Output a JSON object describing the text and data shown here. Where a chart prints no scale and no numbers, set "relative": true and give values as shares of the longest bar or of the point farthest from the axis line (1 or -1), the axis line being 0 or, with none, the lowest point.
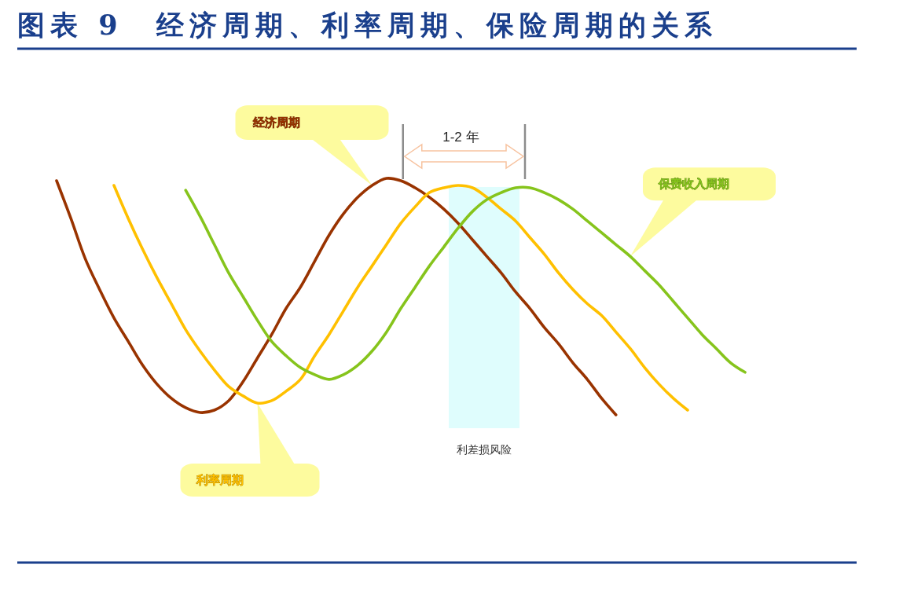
{
  "chart_data": {
    "type": "line",
    "title": "图表 9　经济周期、利率周期、保险周期的关系",
    "relative": true,
    "categories": [
      null,
      null,
      null,
      null,
      null,
      null,
      null,
      null,
      null,
      null,
      null,
      null,
      null,
      null,
      null,
      null,
      null,
      null,
      null,
      null,
      null,
      null,
      null,
      null,
      null,
      null,
      null,
      null,
      null,
      null,
      null,
      null,
      null,
      null,
      null,
      null,
      null,
      null,
      null,
      null,
      null,
      null,
      null,
      null,
      null,
      null,
      null,
      null,
      null
    ],
    "series": [
      {
        "name": "经济周期",
        "color": "#993300",
        "values": [
          0.99,
          0.83,
          0.66,
          0.53,
          0.41,
          0.31,
          0.21,
          0.13,
          0.07,
          0.03,
          0.01,
          0.02,
          0.06,
          0.14,
          0.24,
          0.34,
          0.45,
          0.54,
          0.65,
          0.76,
          0.85,
          0.92,
          0.97,
          1.0,
          0.99,
          0.96,
          0.92,
          0.87,
          0.81,
          0.74,
          0.67,
          0.6,
          0.52,
          0.45,
          0.37,
          0.3,
          0.22,
          0.15,
          0.07,
          0.0,
          null,
          null,
          null,
          null,
          null,
          null,
          null,
          null,
          null
        ]
      },
      {
        "name": "利率周期",
        "color": "#ffc000",
        "values": [
          null,
          null,
          null,
          null,
          0.97,
          0.83,
          0.7,
          0.58,
          0.47,
          0.36,
          0.27,
          0.19,
          0.12,
          0.08,
          0.05,
          0.06,
          0.1,
          0.15,
          0.25,
          0.34,
          0.44,
          0.54,
          0.63,
          0.72,
          0.81,
          0.88,
          0.94,
          0.96,
          0.97,
          0.96,
          0.92,
          0.87,
          0.82,
          0.75,
          0.68,
          0.6,
          0.53,
          0.47,
          0.42,
          0.35,
          0.28,
          0.2,
          0.13,
          0.07,
          0.02,
          null,
          null,
          null,
          null
        ]
      },
      {
        "name": "保费收入周期",
        "color": "#86c41c",
        "values": [
          null,
          null,
          null,
          null,
          null,
          null,
          null,
          null,
          null,
          0.95,
          0.84,
          0.72,
          0.6,
          0.5,
          0.4,
          0.31,
          0.25,
          0.2,
          0.17,
          0.15,
          0.17,
          0.21,
          0.27,
          0.35,
          0.45,
          0.54,
          0.63,
          0.71,
          0.79,
          0.86,
          0.91,
          0.94,
          0.96,
          0.96,
          0.94,
          0.91,
          0.87,
          0.82,
          0.77,
          0.72,
          0.67,
          0.61,
          0.55,
          0.48,
          0.41,
          0.34,
          0.28,
          0.22,
          0.18
        ]
      }
    ],
    "annotations": [
      "1-2 年",
      "利差损风险"
    ]
  }
}
